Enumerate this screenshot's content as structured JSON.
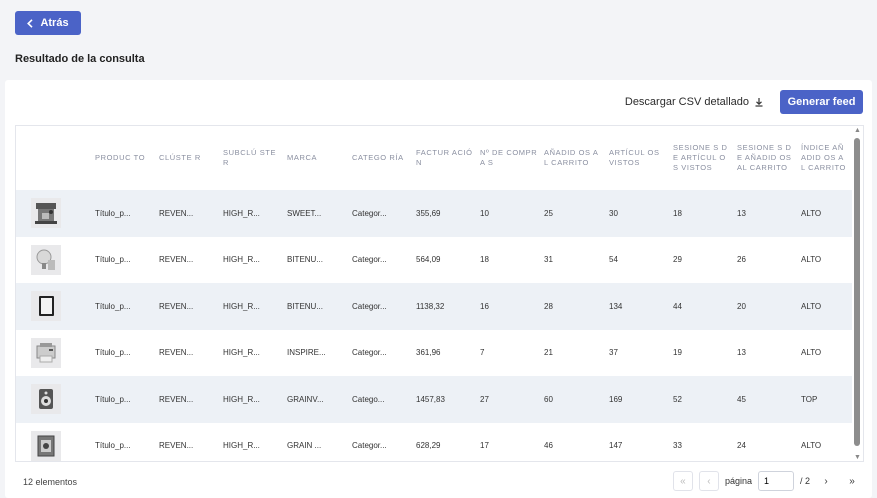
{
  "back_button": {
    "label": "Atrás"
  },
  "page_title": "Resultado de la consulta",
  "toolbar": {
    "download_label": "Descargar CSV detallado",
    "generate_label": "Generar feed"
  },
  "table": {
    "columns": [
      "",
      "PRODUCTO",
      "CLÚSTER",
      "SUBCLÚSTER",
      "MARCA",
      "CATEGORÍA",
      "FACTURACIÓN",
      "Nº DE COMPRAS",
      "AÑADIDOS AL CARRITO",
      "ARTÍCULOS VISTOS",
      "SESIONES DE ARTÍCULOS VISTOS",
      "SESIONES DE AÑADIDOS AL CARRITO",
      "ÍNDICE AÑADIDOS AL CARRITO"
    ],
    "column_headers_display": [
      "",
      "PRODUC TO",
      "CLÚSTE R",
      "SUBCLÚ STER",
      "MARCA",
      "CATEGO RÍA",
      "FACTUR ACIÓN",
      "Nº DE COMPRA S",
      "AÑADID OS AL CARRITO",
      "ARTÍCUL OS VISTOS",
      "SESIONE S DE ARTÍCUL OS VISTOS",
      "SESIONE S DE AÑADID OS AL CARRITO",
      "ÍNDICE AÑADID OS AL CARRITO"
    ],
    "rows": [
      {
        "image": "coffee-machine-icon",
        "cells": [
          "Título_p...",
          "REVEN...",
          "HIGH_R...",
          "SWEET...",
          "Categor...",
          "355,69",
          "10",
          "25",
          "30",
          "18",
          "13",
          "ALTO"
        ]
      },
      {
        "image": "lamp-icon",
        "cells": [
          "Título_p...",
          "REVEN...",
          "HIGH_R...",
          "BITENU...",
          "Categor...",
          "564,09",
          "18",
          "31",
          "54",
          "29",
          "26",
          "ALTO"
        ]
      },
      {
        "image": "tablet-icon",
        "cells": [
          "Título_p...",
          "REVEN...",
          "HIGH_R...",
          "BITENU...",
          "Categor...",
          "1138,32",
          "16",
          "28",
          "134",
          "44",
          "20",
          "ALTO"
        ]
      },
      {
        "image": "printer-icon",
        "cells": [
          "Título_p...",
          "REVEN...",
          "HIGH_R...",
          "INSPIRE...",
          "Categor...",
          "361,96",
          "7",
          "21",
          "37",
          "19",
          "13",
          "ALTO"
        ]
      },
      {
        "image": "speaker-icon",
        "cells": [
          "Título_p...",
          "REVEN...",
          "HIGH_R...",
          "GRAINV...",
          "Catego...",
          "1457,83",
          "27",
          "60",
          "169",
          "52",
          "45",
          "TOP"
        ]
      },
      {
        "image": "safe-icon",
        "cells": [
          "Título_p...",
          "REVEN...",
          "HIGH_R...",
          "GRAIN ...",
          "Categor...",
          "628,29",
          "17",
          "46",
          "147",
          "33",
          "24",
          "ALTO"
        ]
      }
    ]
  },
  "footer": {
    "count_label": "12 elementos",
    "page_label": "página",
    "current_page": "1",
    "total_pages_label": "/ 2"
  },
  "colors": {
    "accent": "#4b63c7",
    "row_alt": "#edf1f6",
    "background": "#f3f4f7"
  }
}
